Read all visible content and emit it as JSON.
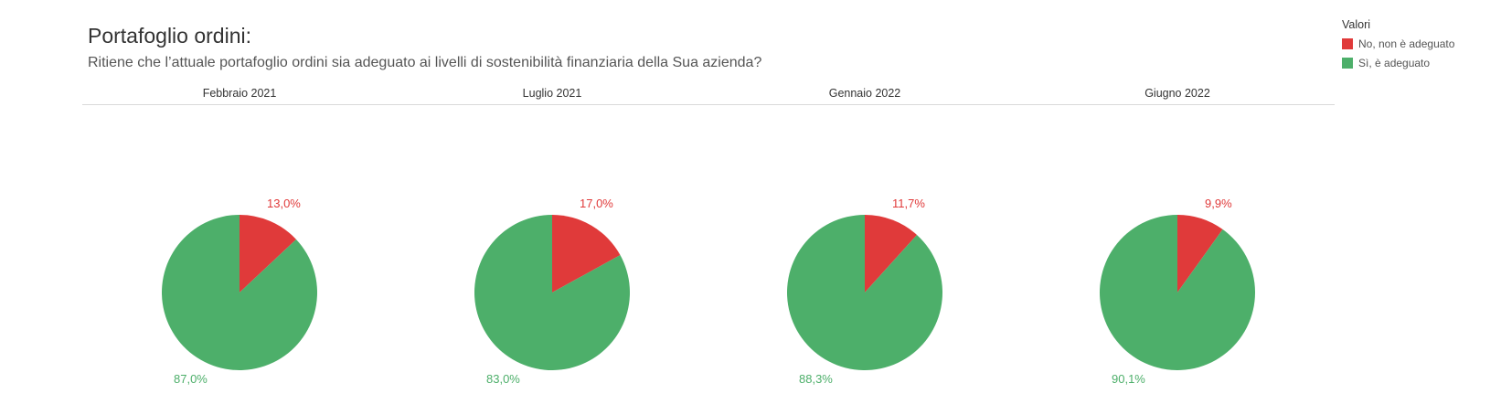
{
  "header": {
    "title": "Portafoglio ordini:",
    "subtitle": "Ritiene che l’attuale portafoglio ordini sia adeguato ai livelli di sostenibilità finanziaria della Sua azienda?"
  },
  "legend": {
    "title": "Valori",
    "items": [
      {
        "label": "No, non è adeguato",
        "color": "#e03a3a"
      },
      {
        "label": "Sì, è adeguato",
        "color": "#4daf6a"
      }
    ]
  },
  "chart_data": {
    "type": "pie",
    "series_names": [
      "No, non è adeguato",
      "Sì, è adeguato"
    ],
    "colors": [
      "#e03a3a",
      "#4daf6a"
    ],
    "panels": [
      {
        "label": "Febbraio 2021",
        "values": [
          13.0,
          87.0
        ],
        "value_labels": [
          "13,0%",
          "87,0%"
        ]
      },
      {
        "label": "Luglio 2021",
        "values": [
          17.0,
          83.0
        ],
        "value_labels": [
          "17,0%",
          "83,0%"
        ]
      },
      {
        "label": "Gennaio 2022",
        "values": [
          11.7,
          88.3
        ],
        "value_labels": [
          "11,7%",
          "88,3%"
        ]
      },
      {
        "label": "Giugno 2022",
        "values": [
          9.9,
          90.1
        ],
        "value_labels": [
          "9,9%",
          "90,1%"
        ]
      }
    ],
    "legend_position": "top-right"
  }
}
